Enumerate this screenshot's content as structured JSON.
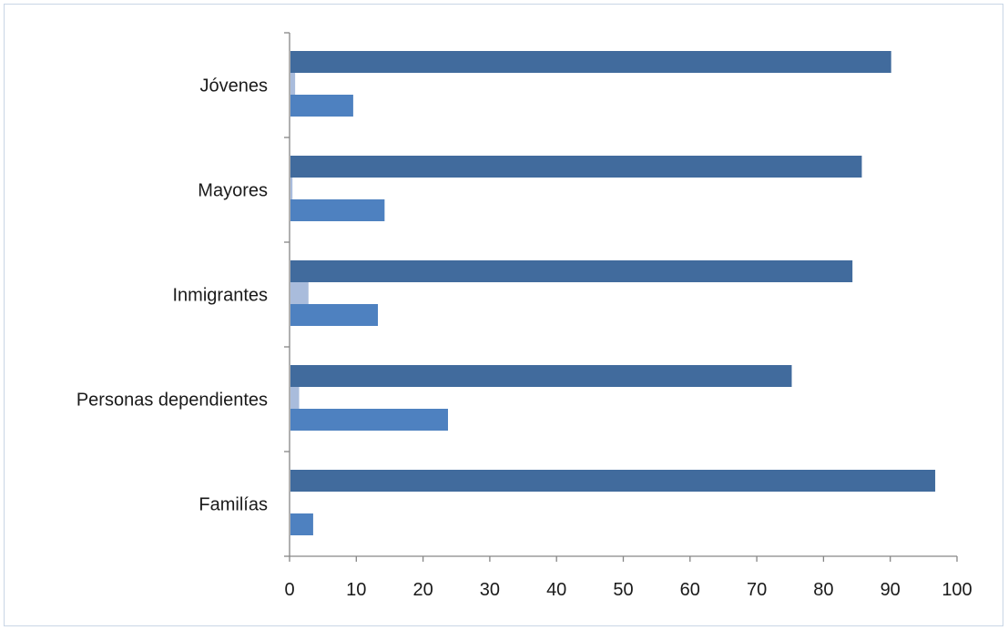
{
  "chart_data": {
    "type": "bar",
    "orientation": "horizontal",
    "title": "",
    "xlabel": "",
    "ylabel": "",
    "xlim": [
      0,
      100
    ],
    "x_ticks": [
      "0",
      "10",
      "20",
      "30",
      "40",
      "50",
      "60",
      "70",
      "80",
      "90",
      "100"
    ],
    "categories": [
      "Familías",
      "Personas dependientes",
      "Inmigrantes",
      "Mayores",
      "Jóvenes"
    ],
    "series": [
      {
        "color": "#416b9d",
        "values": [
          96.6,
          75.1,
          84.2,
          85.6,
          90.0
        ]
      },
      {
        "color": "#a9bcdc",
        "values": [
          0,
          1.3,
          2.7,
          0.3,
          0.7
        ]
      },
      {
        "color": "#4e81c0",
        "values": [
          3.4,
          23.6,
          13.1,
          14.1,
          9.4
        ]
      }
    ],
    "grid": false,
    "legend": "none"
  }
}
